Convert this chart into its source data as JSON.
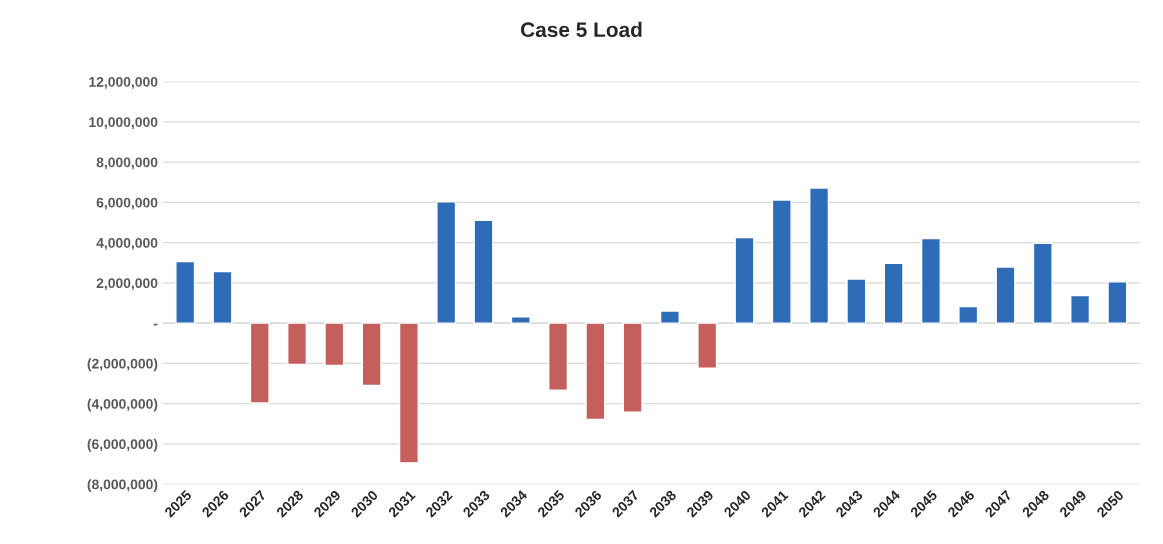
{
  "chart_data": {
    "type": "bar",
    "title": "Case 5 Load",
    "categories": [
      "2025",
      "2026",
      "2027",
      "2028",
      "2029",
      "2030",
      "2031",
      "2032",
      "2033",
      "2034",
      "2035",
      "2036",
      "2037",
      "2038",
      "2039",
      "2040",
      "2041",
      "2042",
      "2043",
      "2044",
      "2045",
      "2046",
      "2047",
      "2048",
      "2049",
      "2050"
    ],
    "values": [
      3060000,
      2560000,
      -3970000,
      -2050000,
      -2100000,
      -3100000,
      -6940000,
      6030000,
      5110000,
      320000,
      -3330000,
      -4790000,
      -4430000,
      600000,
      -2240000,
      4250000,
      6120000,
      6710000,
      2190000,
      2970000,
      4200000,
      820000,
      2790000,
      3970000,
      1370000,
      2050000
    ],
    "colors": [
      "#2e6cb8",
      "#2e6cb8",
      "#c55f5b",
      "#c55f5b",
      "#c55f5b",
      "#c55f5b",
      "#c55f5b",
      "#2e6cb8",
      "#2e6cb8",
      "#2e6cb8",
      "#c55f5b",
      "#c55f5b",
      "#c55f5b",
      "#2e6cb8",
      "#c55f5b",
      "#2e6cb8",
      "#2e6cb8",
      "#2e6cb8",
      "#2e6cb8",
      "#2e6cb8",
      "#2e6cb8",
      "#2e6cb8",
      "#2e6cb8",
      "#2e6cb8",
      "#2e6cb8",
      "#2e6cb8"
    ],
    "ylim": [
      -8000000,
      12000000
    ],
    "yticks": [
      {
        "value": -8000000,
        "label": "(8,000,000)"
      },
      {
        "value": -6000000,
        "label": "(6,000,000)"
      },
      {
        "value": -4000000,
        "label": "(4,000,000)"
      },
      {
        "value": -2000000,
        "label": "(2,000,000)"
      },
      {
        "value": 0,
        "label": "-"
      },
      {
        "value": 2000000,
        "label": "2,000,000"
      },
      {
        "value": 4000000,
        "label": "4,000,000"
      },
      {
        "value": 6000000,
        "label": "6,000,000"
      },
      {
        "value": 8000000,
        "label": "8,000,000"
      },
      {
        "value": 10000000,
        "label": "10,000,000"
      },
      {
        "value": 12000000,
        "label": "12,000,000"
      }
    ],
    "grid": "y"
  }
}
